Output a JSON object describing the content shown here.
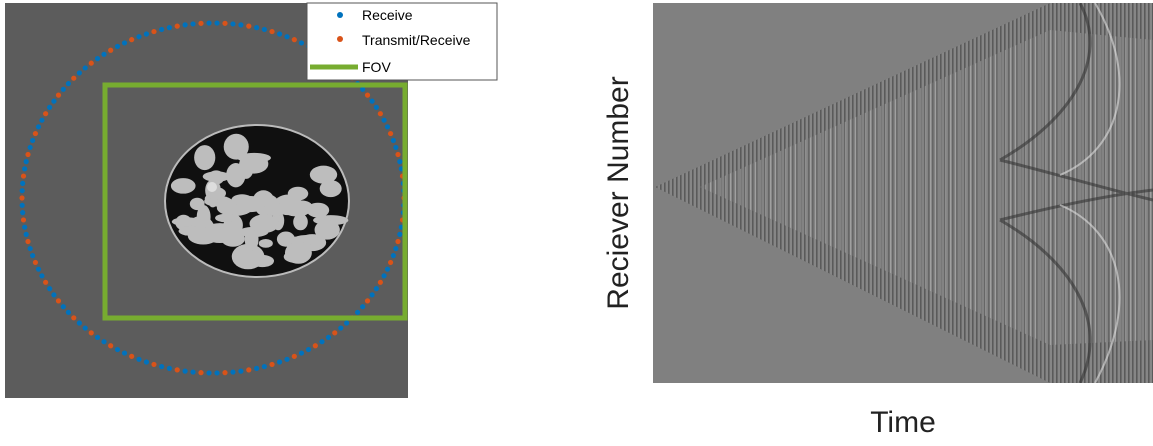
{
  "left_panel": {
    "legend": {
      "items": [
        {
          "label": "Receive",
          "color": "#0072bd"
        },
        {
          "label": "Transmit/Receive",
          "color": "#d95319"
        },
        {
          "label": "FOV",
          "color": "#77ac30"
        }
      ]
    }
  },
  "right_panel": {
    "y_label": "Reciever Number",
    "x_label": "Time"
  }
}
